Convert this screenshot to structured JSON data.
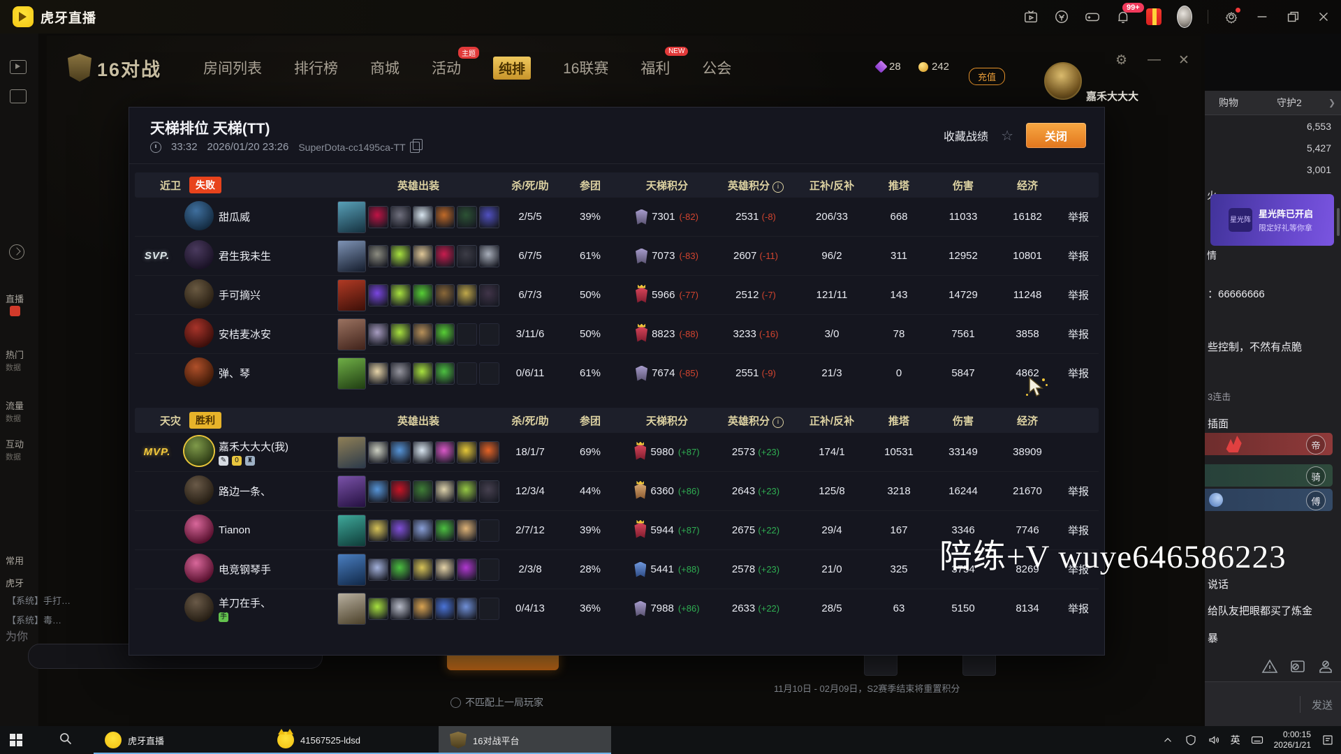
{
  "app": {
    "title": "虎牙直播",
    "bell_badge": "99+"
  },
  "left_rail": {
    "items": [
      "直播",
      "热门",
      "数据",
      "流量",
      "数据",
      "互动",
      "数据",
      "常用",
      "虎牙",
      "为你"
    ],
    "system_messages": [
      "【系统】手打…",
      "【系统】毒…"
    ]
  },
  "game": {
    "logo": "16对战",
    "nav": [
      {
        "label": "房间列表"
      },
      {
        "label": "排行榜"
      },
      {
        "label": "商城"
      },
      {
        "label": "活动",
        "badge": "主题"
      },
      {
        "label": "纯排",
        "highlight": true
      },
      {
        "label": "16联赛"
      },
      {
        "label": "福利",
        "badge": "NEW"
      },
      {
        "label": "公会"
      }
    ],
    "gems": "28",
    "coins": "242",
    "recharge_label": "充值",
    "username": "嘉禾大大大",
    "footer_checkbox": "不匹配上一局玩家",
    "season_note": "11月10日 - 02月09日，S2赛季结束将重置积分"
  },
  "dialog": {
    "title": "天梯排位 天梯(TT)",
    "duration": "33:32",
    "datetime": "2026/01/20 23:26",
    "match_id": "SuperDota-cc1495ca-TT",
    "favorite_label": "收藏战绩",
    "close_label": "关闭",
    "report_label": "举报",
    "columns": {
      "items": "英雄出装",
      "kda": "杀/死/助",
      "participation": "参团",
      "ladder": "天梯积分",
      "hero_points": "英雄积分",
      "cs": "正补/反补",
      "towers": "推塔",
      "damage": "伤害",
      "economy": "经济"
    },
    "teams": [
      {
        "side": "近卫",
        "result": "失败",
        "result_style": "lose",
        "players": [
          {
            "name": "甜瓜威",
            "kda": "2/5/5",
            "participation": "39%",
            "ladder": "7301",
            "ladder_delta": "(-82)",
            "hero_points": "2531",
            "hero_delta": "(-8)",
            "cs": "206/33",
            "towers": "668",
            "damage": "11033",
            "economy": "16182",
            "report": true,
            "medal": [
              "#a79ccc",
              "#5a5372"
            ],
            "crown": false,
            "avatar_colors": [
              "#3f6f9e",
              "#142c42"
            ],
            "hero_colors": [
              "#58a0b8",
              "#15313f"
            ],
            "items": [
              "#c01345",
              "#70707e",
              "#d9e6f0",
              "#c06a28",
              "#2c5234",
              "#5050c0"
            ]
          },
          {
            "name": "君生我未生",
            "badge": "SVP.",
            "kda": "6/7/5",
            "participation": "61%",
            "ladder": "7073",
            "ladder_delta": "(-83)",
            "hero_points": "2607",
            "hero_delta": "(-11)",
            "cs": "96/2",
            "towers": "311",
            "damage": "12952",
            "economy": "10801",
            "report": true,
            "medal": [
              "#a79ccc",
              "#5a5372"
            ],
            "crown": false,
            "avatar_colors": [
              "#4a3a5e",
              "#1a1226"
            ],
            "hero_colors": [
              "#7e93b5",
              "#141c2c"
            ],
            "items": [
              "#8c8c80",
              "#a8e23f",
              "#e0c898",
              "#c81c4e",
              "#3c3c46",
              "#a8aeba"
            ]
          },
          {
            "name": "手可摘兴",
            "kda": "6/7/3",
            "participation": "50%",
            "ladder": "5966",
            "ladder_delta": "(-77)",
            "hero_points": "2512",
            "hero_delta": "(-7)",
            "cs": "121/11",
            "towers": "143",
            "damage": "14729",
            "economy": "11248",
            "report": true,
            "medal": [
              "#d8455a",
              "#7e1c2e"
            ],
            "crown": true,
            "avatar_colors": [
              "#6a5a42",
              "#2a2014"
            ],
            "hero_colors": [
              "#b03a24",
              "#3c0f08"
            ],
            "items": [
              "#7a46e0",
              "#a8e23f",
              "#57cf35",
              "#8a6838",
              "#c0a84a",
              "#403448"
            ]
          },
          {
            "name": "安桔麦冰安",
            "kda": "3/11/6",
            "participation": "50%",
            "ladder": "8823",
            "ladder_delta": "(-88)",
            "hero_points": "3233",
            "hero_delta": "(-16)",
            "cs": "3/0",
            "towers": "78",
            "damage": "7561",
            "economy": "3858",
            "report": true,
            "medal": [
              "#d8455a",
              "#7e1c2e"
            ],
            "crown": true,
            "avatar_colors": [
              "#a8342a",
              "#3c0e0a"
            ],
            "hero_colors": [
              "#9a7260",
              "#40221a"
            ],
            "items": [
              "#a79cc0",
              "#a8e23f",
              "#b8915a",
              "#57cf35",
              null,
              null
            ]
          },
          {
            "name": "弹、琴",
            "kda": "0/6/11",
            "participation": "61%",
            "ladder": "7674",
            "ladder_delta": "(-85)",
            "hero_points": "2551",
            "hero_delta": "(-9)",
            "cs": "21/3",
            "towers": "0",
            "damage": "5847",
            "economy": "4862",
            "report": true,
            "medal": [
              "#a79ccc",
              "#5a5372"
            ],
            "crown": false,
            "avatar_colors": [
              "#b0502a",
              "#401a08"
            ],
            "hero_colors": [
              "#6fae46",
              "#1f3d12"
            ],
            "items": [
              "#e6d4a8",
              "#95959e",
              "#a8e23f",
              "#4cc040",
              null,
              null
            ]
          }
        ]
      },
      {
        "side": "天灾",
        "result": "胜利",
        "result_style": "win",
        "players": [
          {
            "name": "嘉禾大大大(我)",
            "badge": "MVP.",
            "ring": true,
            "kda": "18/1/7",
            "participation": "69%",
            "ladder": "5980",
            "ladder_delta": "(+87)",
            "hero_points": "2573",
            "hero_delta": "(+23)",
            "cs": "174/1",
            "towers": "10531",
            "damage": "33149",
            "economy": "38909",
            "report": false,
            "medal": [
              "#d8455a",
              "#7e1c2e"
            ],
            "crown": true,
            "avatar_colors": [
              "#7f9a4a",
              "#2c3a14"
            ],
            "hero_colors": [
              "#8f7f56",
              "#2c3a4a"
            ],
            "sub_icons": [
              {
                "glyph": "✎",
                "color": "#d6dbe2"
              },
              {
                "glyph": "0",
                "color": "#e9c63f"
              },
              {
                "glyph": "♜",
                "color": "#9fb2c6"
              }
            ],
            "items": [
              "#cdd0c2",
              "#5795d8",
              "#d9e6f0",
              "#da58c8",
              "#e6c838",
              "#e66426"
            ]
          },
          {
            "name": "路边一条、",
            "kda": "12/3/4",
            "participation": "44%",
            "ladder": "6360",
            "ladder_delta": "(+86)",
            "hero_points": "2643",
            "hero_delta": "(+23)",
            "cs": "125/8",
            "towers": "3218",
            "damage": "16244",
            "economy": "21670",
            "report": true,
            "medal": [
              "#d8a770",
              "#8a5a30"
            ],
            "crown": true,
            "avatar_colors": [
              "#6a5a48",
              "#261e14"
            ],
            "hero_colors": [
              "#7a52a8",
              "#241040"
            ],
            "items": [
              "#5795d8",
              "#c81425",
              "#3f7e36",
              "#dfd4ac",
              "#96c844",
              "#46404f"
            ]
          },
          {
            "name": "Tianon",
            "kda": "2/7/12",
            "participation": "39%",
            "ladder": "5944",
            "ladder_delta": "(+87)",
            "hero_points": "2675",
            "hero_delta": "(+22)",
            "cs": "29/4",
            "towers": "167",
            "damage": "3346",
            "economy": "7746",
            "report": true,
            "medal": [
              "#d8455a",
              "#7e1c2e"
            ],
            "crown": true,
            "avatar_colors": [
              "#d8679a",
              "#58102e"
            ],
            "hero_colors": [
              "#3fa89a",
              "#0e3c38"
            ],
            "items": [
              "#d8c458",
              "#8050d8",
              "#8aa0d8",
              "#4cc040",
              "#e0b478",
              null
            ]
          },
          {
            "name": "电竞钢琴手",
            "kda": "2/3/8",
            "participation": "28%",
            "ladder": "5441",
            "ladder_delta": "(+88)",
            "hero_points": "2578",
            "hero_delta": "(+23)",
            "cs": "21/0",
            "towers": "325",
            "damage": "3754",
            "economy": "8269",
            "report": true,
            "medal": [
              "#6f97dc",
              "#2c4a84"
            ],
            "crown": false,
            "avatar_colors": [
              "#d8679a",
              "#58102e"
            ],
            "hero_colors": [
              "#4a7ec0",
              "#102848"
            ],
            "items": [
              "#a4b2dc",
              "#4cc040",
              "#d8c458",
              "#e6d4a8",
              "#b038d0",
              null
            ]
          },
          {
            "name": "羊刀在手、",
            "kda": "0/4/13",
            "participation": "36%",
            "ladder": "7988",
            "ladder_delta": "(+86)",
            "hero_points": "2633",
            "hero_delta": "(+22)",
            "cs": "28/5",
            "towers": "63",
            "damage": "5150",
            "economy": "8134",
            "report": true,
            "medal": [
              "#a79ccc",
              "#5a5372"
            ],
            "crown": false,
            "avatar_colors": [
              "#6a5a48",
              "#261e14"
            ],
            "hero_colors": [
              "#b8b0a0",
              "#4a3f28"
            ],
            "sub_icons": [
              {
                "glyph": "手",
                "color": "#63c24e"
              }
            ],
            "items": [
              "#a8e23f",
              "#b8bcc8",
              "#daa452",
              "#4a74d8",
              "#7090d8",
              null
            ]
          }
        ]
      }
    ]
  },
  "sidebar": {
    "tabs": [
      "购物",
      "守护2"
    ],
    "rank_values": [
      "6,553",
      "5,427",
      "3,001"
    ],
    "rank_partial": "火",
    "banner": {
      "icon": "星光阵",
      "line1": "星光阵已开启",
      "line2": "限定好礼等你拿"
    },
    "partial_left": "情",
    "messages_top": [
      {
        "text": "：66666666",
        "muted": false
      },
      {
        "text": "些控制，不然有点脆",
        "muted": false
      },
      {
        "text": "3连击",
        "muted": true
      },
      {
        "text": "插面",
        "muted": false
      }
    ],
    "guard_banners": [
      {
        "char": "帝",
        "style": "red"
      },
      {
        "char": "骑",
        "style": "green"
      },
      {
        "char": "傅",
        "style": "blue"
      }
    ],
    "messages_bottom": [
      {
        "text": "说话",
        "muted": false
      },
      {
        "text": "给队友把眼都买了炼金",
        "muted": false
      },
      {
        "text": "暴",
        "muted": false
      }
    ],
    "send_label": "发送"
  },
  "watermark": "陪练+V wuye646586223",
  "taskbar": {
    "apps": [
      {
        "label": "虎牙直播",
        "icon": "huya",
        "active": false
      },
      {
        "label": "41567525-ldsd",
        "icon": "cat",
        "active": false
      },
      {
        "label": "16对战平台",
        "icon": "shield",
        "active": true
      }
    ],
    "lang": "英",
    "time": "0:00:15",
    "date": "2026/1/21"
  }
}
